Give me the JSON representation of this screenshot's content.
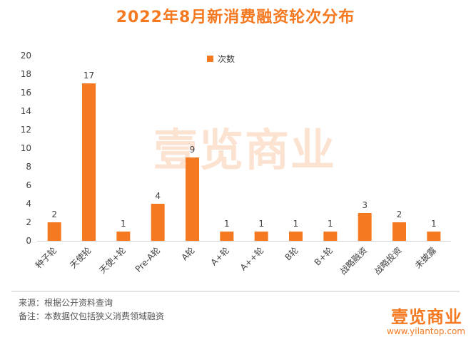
{
  "header": {
    "title": "2022年8月新消费融资轮次分布"
  },
  "chart_data": {
    "type": "bar",
    "title": "2022年8月新消费融资轮次分布",
    "categories": [
      "种子轮",
      "天使轮",
      "天使+轮",
      "Pre-A轮",
      "A轮",
      "A+轮",
      "A++轮",
      "B轮",
      "B+轮",
      "战略融资",
      "战略投资",
      "未披露"
    ],
    "series": [
      {
        "name": "次数",
        "values": [
          2,
          17,
          1,
          4,
          9,
          1,
          1,
          1,
          1,
          3,
          2,
          1
        ]
      }
    ],
    "ylim": [
      0,
      20
    ],
    "yticks": [
      0,
      2,
      4,
      6,
      8,
      10,
      12,
      14,
      16,
      18,
      20
    ],
    "legend_position": "top-center",
    "grid": false,
    "bar_color": "#f47920"
  },
  "footer": {
    "source": "来源：根据公开资料查询",
    "note": "备注：本数据仅包括狭义消费领域融资"
  },
  "brand": {
    "logo": "壹览商业",
    "url": "www.yilantop.com"
  },
  "watermark": {
    "text": "壹览商业"
  }
}
